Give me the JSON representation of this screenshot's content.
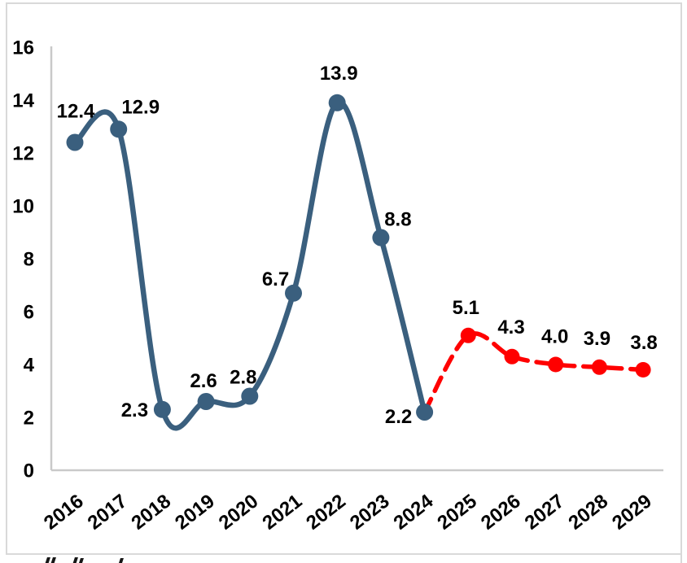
{
  "figure": {
    "colors": {
      "actual_line": "#3A5F7E",
      "forecast_line": "#FF0000",
      "axis_line": "#C9C9C9",
      "frame_border": "#D9D9D9",
      "label_text": "#000000"
    }
  },
  "chart_data": {
    "type": "line",
    "title": "",
    "xlabel": "",
    "ylabel": "",
    "x_labels": [
      "2016",
      "2017",
      "2018",
      "2019",
      "2020",
      "2021",
      "2022",
      "2023",
      "2024",
      "2025",
      "2026",
      "2027",
      "2028",
      "2029"
    ],
    "y_ticks": [
      0,
      2,
      4,
      6,
      8,
      10,
      12,
      14,
      16
    ],
    "ylim": [
      0,
      16
    ],
    "grid": false,
    "legend": "none",
    "smoothed": true,
    "series": [
      {
        "name": "historical",
        "color": "#3A5F7E",
        "line_style": "solid",
        "marker": "circle",
        "x": [
          2016,
          2017,
          2018,
          2019,
          2020,
          2021,
          2022,
          2023,
          2024
        ],
        "values": [
          12.4,
          12.9,
          2.3,
          2.6,
          2.8,
          6.7,
          13.9,
          8.8,
          2.2
        ],
        "labels": [
          "12.4",
          "12.9",
          "2.3",
          "2.6",
          "2.8",
          "6.7",
          "13.9",
          "8.8",
          "2.2"
        ]
      },
      {
        "name": "forecast",
        "color": "#FF0000",
        "line_style": "dashed",
        "marker": "circle",
        "x": [
          2024,
          2025,
          2026,
          2027,
          2028,
          2029
        ],
        "values": [
          2.2,
          5.1,
          4.3,
          4.0,
          3.9,
          3.8
        ],
        "labels": [
          "",
          "5.1",
          "4.3",
          "4.0",
          "3.9",
          "3.8"
        ]
      }
    ],
    "layout": {
      "x_tick_rotation": -38,
      "label_offsets": {
        "historical": [
          [
            1,
            -38
          ],
          [
            27,
            -27
          ],
          [
            -34,
            1
          ],
          [
            -3,
            -25
          ],
          [
            -8,
            -23
          ],
          [
            -22,
            -17
          ],
          [
            2,
            -36
          ],
          [
            21,
            -22
          ],
          [
            -32,
            6
          ]
        ],
        "forecast": [
          null,
          [
            -3,
            -34
          ],
          [
            -1,
            -36
          ],
          [
            -1,
            -34
          ],
          [
            -3,
            -35
          ],
          [
            1,
            -33
          ]
        ]
      }
    }
  }
}
